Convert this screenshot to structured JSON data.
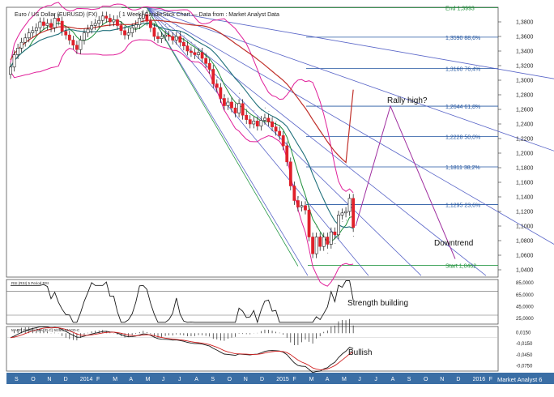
{
  "header": {
    "title": "Euro / US Dollar (EURUSD) (FX)",
    "subtitle": "[ 1 Week] CandleStick Chart — Data from : Market Analyst Data"
  },
  "watermark": "Market Analyst 6",
  "colors": {
    "candle_up": "#1a1a1a",
    "candle_down": "#e0202a",
    "bollinger": "#e0209a",
    "ma_green": "#1f8f3a",
    "ma_teal": "#1f6f7a",
    "ma_red": "#c0302a",
    "fan": "#5a66c8",
    "fib": "#2255a0",
    "projection": "#a030a0",
    "rsi": "#1a1a1a",
    "macd_black": "#1a1a1a",
    "macd_red": "#d02020",
    "axis_strip": "#3a6ea5"
  },
  "chart_data": [
    {
      "type": "line",
      "title": "Euro / US Dollar (EURUSD) (FX)",
      "kind": "candlestick",
      "x_ticks": [
        "S",
        "O",
        "N",
        "D",
        "2014",
        "F",
        "M",
        "A",
        "M",
        "J",
        "J",
        "A",
        "S",
        "O",
        "N",
        "D",
        "2015",
        "F",
        "M",
        "A",
        "M",
        "J",
        "J",
        "A",
        "S",
        "O",
        "N",
        "D",
        "2016",
        "F"
      ],
      "ylim": [
        1.03,
        1.4
      ],
      "y_ticks": [
        "1,3800",
        "1,3600",
        "1,3400",
        "1,3200",
        "1,3000",
        "1,2800",
        "1,2600",
        "1,2400",
        "1,2200",
        "1,2000",
        "1,1800",
        "1,1600",
        "1,1400",
        "1,1200",
        "1,1000",
        "1,0800",
        "1,0600",
        "1,0400"
      ],
      "weekly_closes": [
        1.318,
        1.335,
        1.344,
        1.352,
        1.358,
        1.365,
        1.368,
        1.372,
        1.38,
        1.375,
        1.378,
        1.372,
        1.385,
        1.381,
        1.367,
        1.362,
        1.355,
        1.348,
        1.342,
        1.355,
        1.365,
        1.37,
        1.375,
        1.378,
        1.382,
        1.388,
        1.385,
        1.38,
        1.383,
        1.375,
        1.368,
        1.362,
        1.365,
        1.372,
        1.376,
        1.385,
        1.39,
        1.381,
        1.372,
        1.36,
        1.357,
        1.36,
        1.362,
        1.36,
        1.355,
        1.36,
        1.352,
        1.347,
        1.34,
        1.338,
        1.335,
        1.338,
        1.33,
        1.323,
        1.315,
        1.295,
        1.29,
        1.275,
        1.265,
        1.27,
        1.262,
        1.255,
        1.268,
        1.252,
        1.246,
        1.24,
        1.244,
        1.237,
        1.245,
        1.248,
        1.243,
        1.236,
        1.23,
        1.224,
        1.21,
        1.188,
        1.155,
        1.135,
        1.126,
        1.128,
        1.122,
        1.085,
        1.062,
        1.085,
        1.072,
        1.085,
        1.075,
        1.092,
        1.088,
        1.115,
        1.118,
        1.12,
        1.138,
        1.098
      ],
      "fibonacci_levels": [
        {
          "value": 1.3993,
          "label": "End 1,3993"
        },
        {
          "value": 1.359,
          "label": "1,3590 88,6%"
        },
        {
          "value": 1.316,
          "label": "1,3160 76,4%"
        },
        {
          "value": 1.2644,
          "label": "1,2644 61,8%"
        },
        {
          "value": 1.2228,
          "label": "1,2228 50,0%"
        },
        {
          "value": 1.1811,
          "label": "1,1811 38,2%"
        },
        {
          "value": 1.1295,
          "label": "1,1295 23,6%"
        },
        {
          "value": 1.0462,
          "label": "Start 1,0462"
        }
      ],
      "projection": {
        "start": 1.1,
        "rally_high": 1.2644,
        "end": 1.055
      },
      "annotations": [
        "Rally high?",
        "Downtrend"
      ]
    },
    {
      "type": "line",
      "title": "RSI (RSI) 5 Period RSI",
      "ylim": [
        15,
        90
      ],
      "y_ticks": [
        "85,0000",
        "65,0000",
        "45,0000",
        "25,0000"
      ],
      "reference_lines": [
        70,
        30
      ],
      "annotations": [
        "Strength building"
      ]
    },
    {
      "type": "line",
      "title": "MACD Combo (MACD-C) 5/25/5 MACD-C",
      "ylim": [
        -0.09,
        0.03
      ],
      "y_ticks": [
        "0,0150",
        "-0,0150",
        "-0,0450",
        "-0,0750"
      ],
      "annotations": [
        "Bullish"
      ]
    }
  ]
}
